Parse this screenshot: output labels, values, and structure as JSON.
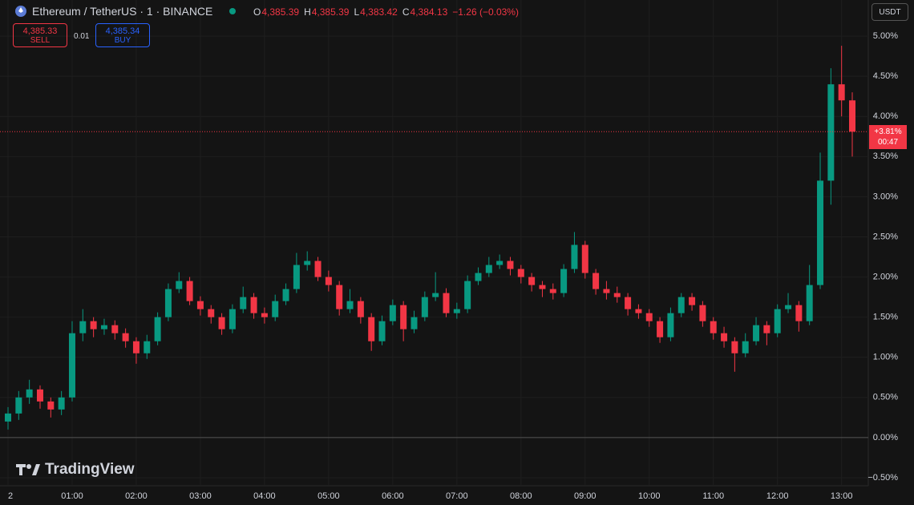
{
  "toolbar": {
    "symbol": "Ethereum / TetherUS · 1 · BINANCE",
    "ohlc": [
      {
        "key": "O",
        "value": "4,385.39"
      },
      {
        "key": "H",
        "value": "4,385.39"
      },
      {
        "key": "L",
        "value": "4,383.42"
      },
      {
        "key": "C",
        "value": "4,384.13"
      }
    ],
    "change": "−1.26 (−0.03%)",
    "sell_price": "4,385.33",
    "sell": "SELL",
    "quantity": "0.01",
    "buy_price": "4,385.34",
    "buy": "BUY",
    "currency": "USDT",
    "brand": "TradingView"
  },
  "chart_data": {
    "type": "candlestick",
    "up_color": "#089981",
    "down_color": "#f23645",
    "grid": true,
    "x": [
      0,
      10,
      20,
      30,
      40,
      50,
      60,
      70,
      80,
      90,
      100,
      110,
      120,
      130,
      140,
      150,
      160,
      170,
      180,
      190,
      200,
      210,
      220,
      230,
      240,
      250,
      260,
      270,
      280,
      290,
      300,
      310,
      320,
      330,
      340,
      350,
      360,
      370,
      380,
      390,
      400,
      410,
      420,
      430,
      440,
      450,
      460,
      470,
      480,
      490,
      500,
      510,
      520,
      530,
      540,
      550,
      560,
      570,
      580,
      590,
      600,
      610,
      620,
      630,
      640,
      650,
      660,
      670,
      680,
      690,
      700,
      710,
      720,
      730,
      740,
      750,
      760,
      770,
      780,
      790
    ],
    "open": [
      0.2,
      0.3,
      0.5,
      0.6,
      0.45,
      0.35,
      0.5,
      1.3,
      1.45,
      1.35,
      1.4,
      1.3,
      1.2,
      1.05,
      1.2,
      1.5,
      1.85,
      1.95,
      1.7,
      1.6,
      1.5,
      1.35,
      1.6,
      1.75,
      1.55,
      1.5,
      1.7,
      1.85,
      2.15,
      2.2,
      2.0,
      1.9,
      1.6,
      1.7,
      1.5,
      1.2,
      1.45,
      1.65,
      1.35,
      1.5,
      1.75,
      1.8,
      1.55,
      1.6,
      1.95,
      2.05,
      2.15,
      2.2,
      2.1,
      2.0,
      1.9,
      1.85,
      1.8,
      2.1,
      2.4,
      2.05,
      1.85,
      1.8,
      1.75,
      1.6,
      1.55,
      1.45,
      1.25,
      1.55,
      1.75,
      1.65,
      1.45,
      1.3,
      1.2,
      1.05,
      1.2,
      1.4,
      1.3,
      1.6,
      1.65,
      1.45,
      1.9,
      3.2,
      4.4,
      4.2
    ],
    "high": [
      0.38,
      0.58,
      0.72,
      0.65,
      0.5,
      0.58,
      1.45,
      1.6,
      1.5,
      1.48,
      1.46,
      1.36,
      1.25,
      1.28,
      1.56,
      1.92,
      2.06,
      2.0,
      1.76,
      1.65,
      1.55,
      1.66,
      1.88,
      1.8,
      1.62,
      1.78,
      1.92,
      2.3,
      2.32,
      2.25,
      2.08,
      1.95,
      1.85,
      1.75,
      1.55,
      1.52,
      1.72,
      1.7,
      1.58,
      1.82,
      2.06,
      1.86,
      1.68,
      2.02,
      2.12,
      2.25,
      2.28,
      2.25,
      2.15,
      2.05,
      1.95,
      1.92,
      2.16,
      2.56,
      2.45,
      2.1,
      1.95,
      1.88,
      1.8,
      1.66,
      1.6,
      1.5,
      1.62,
      1.8,
      1.8,
      1.7,
      1.5,
      1.38,
      1.25,
      1.3,
      1.5,
      1.45,
      1.66,
      1.8,
      1.7,
      2.15,
      3.55,
      4.6,
      4.88,
      4.3
    ],
    "low": [
      0.1,
      0.22,
      0.42,
      0.36,
      0.25,
      0.28,
      0.45,
      1.2,
      1.25,
      1.28,
      1.22,
      1.12,
      0.92,
      0.98,
      1.15,
      1.45,
      1.8,
      1.65,
      1.52,
      1.42,
      1.28,
      1.3,
      1.55,
      1.48,
      1.42,
      1.45,
      1.65,
      1.8,
      2.08,
      1.95,
      1.82,
      1.52,
      1.55,
      1.42,
      1.08,
      1.15,
      1.4,
      1.2,
      1.3,
      1.45,
      1.7,
      1.5,
      1.48,
      1.55,
      1.9,
      2.0,
      2.1,
      2.02,
      1.92,
      1.82,
      1.75,
      1.72,
      1.75,
      2.05,
      1.98,
      1.78,
      1.72,
      1.68,
      1.52,
      1.48,
      1.38,
      1.18,
      1.2,
      1.5,
      1.58,
      1.38,
      1.22,
      1.12,
      0.82,
      1.0,
      1.15,
      1.15,
      1.25,
      1.55,
      1.32,
      1.4,
      1.85,
      2.9,
      4.0,
      3.5
    ],
    "close": [
      0.3,
      0.5,
      0.6,
      0.45,
      0.35,
      0.5,
      1.3,
      1.45,
      1.35,
      1.4,
      1.3,
      1.2,
      1.05,
      1.2,
      1.5,
      1.85,
      1.95,
      1.7,
      1.6,
      1.5,
      1.35,
      1.6,
      1.75,
      1.55,
      1.5,
      1.7,
      1.85,
      2.15,
      2.2,
      2.0,
      1.9,
      1.6,
      1.7,
      1.5,
      1.2,
      1.45,
      1.65,
      1.35,
      1.5,
      1.75,
      1.8,
      1.55,
      1.6,
      1.95,
      2.05,
      2.15,
      2.2,
      2.1,
      2.0,
      1.9,
      1.85,
      1.8,
      2.1,
      2.4,
      2.05,
      1.85,
      1.8,
      1.75,
      1.6,
      1.55,
      1.45,
      1.25,
      1.55,
      1.75,
      1.65,
      1.45,
      1.3,
      1.2,
      1.05,
      1.2,
      1.4,
      1.3,
      1.6,
      1.65,
      1.45,
      1.9,
      3.2,
      4.4,
      4.2,
      3.81
    ],
    "xlim": [
      0,
      805
    ],
    "xticks": [
      {
        "value": 0,
        "label": "2"
      },
      {
        "value": 60,
        "label": "01:00"
      },
      {
        "value": 120,
        "label": "02:00"
      },
      {
        "value": 180,
        "label": "03:00"
      },
      {
        "value": 240,
        "label": "04:00"
      },
      {
        "value": 300,
        "label": "05:00"
      },
      {
        "value": 360,
        "label": "06:00"
      },
      {
        "value": 420,
        "label": "07:00"
      },
      {
        "value": 480,
        "label": "08:00"
      },
      {
        "value": 540,
        "label": "09:00"
      },
      {
        "value": 600,
        "label": "10:00"
      },
      {
        "value": 660,
        "label": "11:00"
      },
      {
        "value": 720,
        "label": "12:00"
      },
      {
        "value": 780,
        "label": "13:00"
      }
    ],
    "ylim": [
      -0.6,
      5.45
    ],
    "yticks": [
      {
        "value": -0.5,
        "label": "−0.50%"
      },
      {
        "value": 0,
        "label": "0.00%"
      },
      {
        "value": 0.5,
        "label": "0.50%"
      },
      {
        "value": 1,
        "label": "1.00%"
      },
      {
        "value": 1.5,
        "label": "1.50%"
      },
      {
        "value": 2,
        "label": "2.00%"
      },
      {
        "value": 2.5,
        "label": "2.50%"
      },
      {
        "value": 3,
        "label": "3.00%"
      },
      {
        "value": 3.5,
        "label": "3.50%"
      },
      {
        "value": 4,
        "label": "4.00%"
      },
      {
        "value": 4.5,
        "label": "4.50%"
      },
      {
        "value": 5,
        "label": "5.00%"
      }
    ],
    "last_value": {
      "value": 3.81,
      "label": "+3.81%"
    },
    "countdown": "00:47"
  }
}
